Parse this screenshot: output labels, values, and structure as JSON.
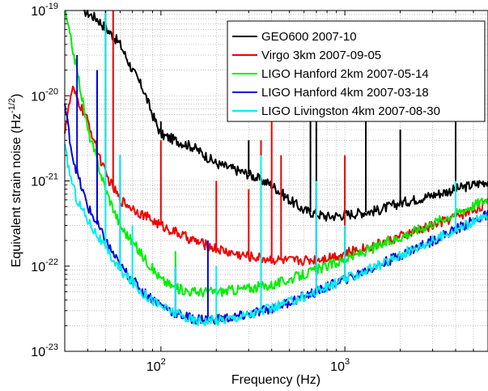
{
  "chart_data": {
    "type": "line",
    "xlabel": "Frequency (Hz)",
    "ylabel": {
      "text": "Equivalent strain noise (Hz",
      "exponent": "-1/2",
      "close": ")"
    },
    "xscale": "log",
    "yscale": "log",
    "xlim": [
      30,
      6000
    ],
    "ylim": [
      1e-23,
      1e-19
    ],
    "grid": "on",
    "legend_position": "top-right",
    "xticks": [
      {
        "value": 100,
        "base": "10",
        "exp": "2"
      },
      {
        "value": 1000,
        "base": "10",
        "exp": "3"
      }
    ],
    "yticks": [
      {
        "value": 1e-23,
        "base": "10",
        "exp": "-23"
      },
      {
        "value": 1e-22,
        "base": "10",
        "exp": "-22"
      },
      {
        "value": 1e-21,
        "base": "10",
        "exp": "-21"
      },
      {
        "value": 1e-20,
        "base": "10",
        "exp": "-20"
      },
      {
        "value": 1e-19,
        "base": "10",
        "exp": "-19"
      }
    ],
    "series": [
      {
        "name": "GEO600 2007-10",
        "color": "#000000",
        "points": [
          [
            38,
            1e-19
          ],
          [
            45,
            8e-20
          ],
          [
            55,
            5e-20
          ],
          [
            60,
            4e-20
          ],
          [
            70,
            2e-20
          ],
          [
            80,
            1.2e-20
          ],
          [
            90,
            6e-21
          ],
          [
            100,
            3.5e-21
          ],
          [
            120,
            3e-21
          ],
          [
            150,
            2.5e-21
          ],
          [
            200,
            1.6e-21
          ],
          [
            300,
            1.2e-21
          ],
          [
            400,
            9e-22
          ],
          [
            500,
            6e-22
          ],
          [
            600,
            4.5e-22
          ],
          [
            800,
            3.8e-22
          ],
          [
            1000,
            4e-22
          ],
          [
            1500,
            4.5e-22
          ],
          [
            2000,
            5.5e-22
          ],
          [
            3000,
            6.8e-22
          ],
          [
            4000,
            8e-22
          ],
          [
            5000,
            9e-22
          ],
          [
            6000,
            1e-21
          ]
        ],
        "spikes": [
          [
            50,
            9e-20
          ],
          [
            100,
            5e-21
          ],
          [
            300,
            3e-21
          ],
          [
            650,
            1e-20
          ],
          [
            700,
            5e-20
          ],
          [
            1300,
            8e-21
          ],
          [
            2000,
            4e-21
          ],
          [
            4000,
            5e-21
          ]
        ]
      },
      {
        "name": "Virgo 3km 2007-09-05",
        "color": "#ee0000",
        "points": [
          [
            30,
            4e-21
          ],
          [
            33,
            1.2e-20
          ],
          [
            40,
            5e-21
          ],
          [
            50,
            1.2e-21
          ],
          [
            60,
            6e-22
          ],
          [
            80,
            4e-22
          ],
          [
            100,
            3e-22
          ],
          [
            150,
            2e-22
          ],
          [
            200,
            1.6e-22
          ],
          [
            250,
            1.4e-22
          ],
          [
            300,
            1.3e-22
          ],
          [
            400,
            1.2e-22
          ],
          [
            500,
            1.15e-22
          ],
          [
            700,
            1.2e-22
          ],
          [
            1000,
            1.4e-22
          ],
          [
            1500,
            1.8e-22
          ],
          [
            2000,
            2.2e-22
          ],
          [
            3000,
            3e-22
          ],
          [
            4000,
            3.8e-22
          ],
          [
            5000,
            4.6e-22
          ],
          [
            6000,
            5.5e-22
          ]
        ],
        "spikes": [
          [
            50,
            1e-19
          ],
          [
            55,
            1e-19
          ],
          [
            100,
            3e-21
          ],
          [
            200,
            1e-21
          ],
          [
            300,
            8e-22
          ],
          [
            350,
            3e-21
          ],
          [
            400,
            5e-21
          ],
          [
            450,
            2e-21
          ],
          [
            700,
            1e-21
          ],
          [
            1000,
            2e-21
          ]
        ]
      },
      {
        "name": "LIGO Hanford 2km 2007-05-14",
        "color": "#00ee00",
        "points": [
          [
            30,
            1e-19
          ],
          [
            35,
            2e-20
          ],
          [
            40,
            4e-21
          ],
          [
            50,
            8e-22
          ],
          [
            60,
            3e-22
          ],
          [
            80,
            1.3e-22
          ],
          [
            100,
            7e-23
          ],
          [
            120,
            5.5e-23
          ],
          [
            150,
            5e-23
          ],
          [
            200,
            5e-23
          ],
          [
            300,
            5.5e-23
          ],
          [
            400,
            6e-23
          ],
          [
            500,
            7e-23
          ],
          [
            700,
            9e-23
          ],
          [
            1000,
            1.2e-22
          ],
          [
            1500,
            1.7e-22
          ],
          [
            2000,
            2.2e-22
          ],
          [
            3000,
            3.2e-22
          ],
          [
            4000,
            4.2e-22
          ],
          [
            5000,
            5.2e-22
          ],
          [
            6000,
            6.2e-22
          ]
        ],
        "spikes": [
          [
            60,
            5e-22
          ],
          [
            120,
            1.5e-22
          ],
          [
            350,
            5e-22
          ],
          [
            700,
            1e-21
          ],
          [
            1000,
            3e-22
          ]
        ]
      },
      {
        "name": "LIGO Hanford 4km 2007-03-18",
        "color": "#0000dd",
        "points": [
          [
            30,
            8e-21
          ],
          [
            33,
            2e-21
          ],
          [
            36,
            1e-21
          ],
          [
            40,
            5e-22
          ],
          [
            50,
            2e-22
          ],
          [
            60,
            1e-22
          ],
          [
            80,
            5e-23
          ],
          [
            100,
            3.5e-23
          ],
          [
            120,
            2.8e-23
          ],
          [
            150,
            2.4e-23
          ],
          [
            200,
            2.4e-23
          ],
          [
            250,
            2.5e-23
          ],
          [
            300,
            2.7e-23
          ],
          [
            400,
            3.2e-23
          ],
          [
            500,
            3.8e-23
          ],
          [
            700,
            5e-23
          ],
          [
            1000,
            7e-23
          ],
          [
            1500,
            1e-22
          ],
          [
            2000,
            1.35e-22
          ],
          [
            3000,
            2e-22
          ],
          [
            4000,
            2.7e-22
          ],
          [
            5000,
            3.4e-22
          ],
          [
            6000,
            4e-22
          ]
        ],
        "spikes": [
          [
            35,
            3e-20
          ],
          [
            45,
            2e-20
          ],
          [
            60,
            2e-21
          ],
          [
            120,
            1e-22
          ],
          [
            180,
            2e-22
          ],
          [
            350,
            3e-22
          ],
          [
            700,
            8e-22
          ],
          [
            1000,
            2e-22
          ]
        ]
      },
      {
        "name": "LIGO Livingston 4km 2007-08-30",
        "color": "#00eeee",
        "points": [
          [
            30,
            2.5e-21
          ],
          [
            32,
            1.2e-21
          ],
          [
            35,
            6e-22
          ],
          [
            40,
            3.5e-22
          ],
          [
            50,
            1.6e-22
          ],
          [
            60,
            9e-23
          ],
          [
            80,
            4.8e-23
          ],
          [
            100,
            3.4e-23
          ],
          [
            120,
            2.8e-23
          ],
          [
            150,
            2.3e-23
          ],
          [
            200,
            2.3e-23
          ],
          [
            250,
            2.5e-23
          ],
          [
            300,
            2.7e-23
          ],
          [
            400,
            3.2e-23
          ],
          [
            500,
            3.8e-23
          ],
          [
            700,
            5e-23
          ],
          [
            1000,
            7e-23
          ],
          [
            1500,
            1e-22
          ],
          [
            2000,
            1.35e-22
          ],
          [
            3000,
            2e-22
          ],
          [
            4000,
            2.7e-22
          ],
          [
            5000,
            3.3e-22
          ],
          [
            6000,
            3.9e-22
          ]
        ],
        "spikes": [
          [
            50,
            1e-19
          ],
          [
            60,
            2e-21
          ],
          [
            70,
            3e-22
          ],
          [
            120,
            1e-22
          ],
          [
            200,
            1e-22
          ],
          [
            350,
            2e-21
          ],
          [
            700,
            1e-21
          ],
          [
            1000,
            3e-22
          ],
          [
            4000,
            1e-21
          ]
        ]
      }
    ]
  }
}
